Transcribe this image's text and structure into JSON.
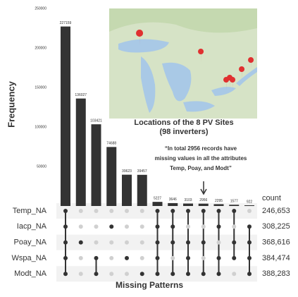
{
  "chart_data": {
    "type": "upset",
    "y_label": "Frequency",
    "x_label": "Missing Patterns",
    "values": [
      227159,
      136027,
      103421,
      74688,
      39623,
      39457,
      5227,
      3646,
      3103,
      2956,
      2295,
      1577,
      922
    ],
    "color": "#333333",
    "ylim": [
      0,
      250000
    ],
    "yticks": [
      50000,
      100000,
      150000,
      200000,
      250000
    ],
    "row_names": [
      "Temp_NA",
      "Iacp_NA",
      "Poay_NA",
      "Wspa_NA",
      "Modt_NA"
    ],
    "count_header": "count",
    "row_counts": [
      {
        "value": 246653,
        "label": "246,653"
      },
      {
        "value": 308225,
        "label": "308,225"
      },
      {
        "value": 368616,
        "label": "368,616"
      },
      {
        "value": 384474,
        "label": "384,474"
      },
      {
        "value": 388283,
        "label": "388,283"
      }
    ],
    "sets": [
      [
        0,
        1,
        2,
        3,
        4
      ],
      [
        2
      ],
      [
        3,
        4
      ],
      [
        1
      ],
      [
        3
      ],
      [
        4
      ],
      [
        0,
        1,
        2,
        3,
        4
      ],
      [
        0,
        1,
        2,
        4
      ],
      [
        0,
        2,
        3,
        4
      ],
      [
        0,
        2,
        4
      ],
      [
        0,
        1,
        3,
        4
      ],
      [
        0,
        2,
        3
      ],
      [
        1,
        2,
        3,
        4
      ]
    ],
    "map_title": [
      "Locations of the 8 PV Sites",
      "(98 inverters)"
    ],
    "annotation": [
      "“In total 2956 records have",
      "missing values in all the attributes",
      "Temp, Poay, and Modt”"
    ]
  }
}
